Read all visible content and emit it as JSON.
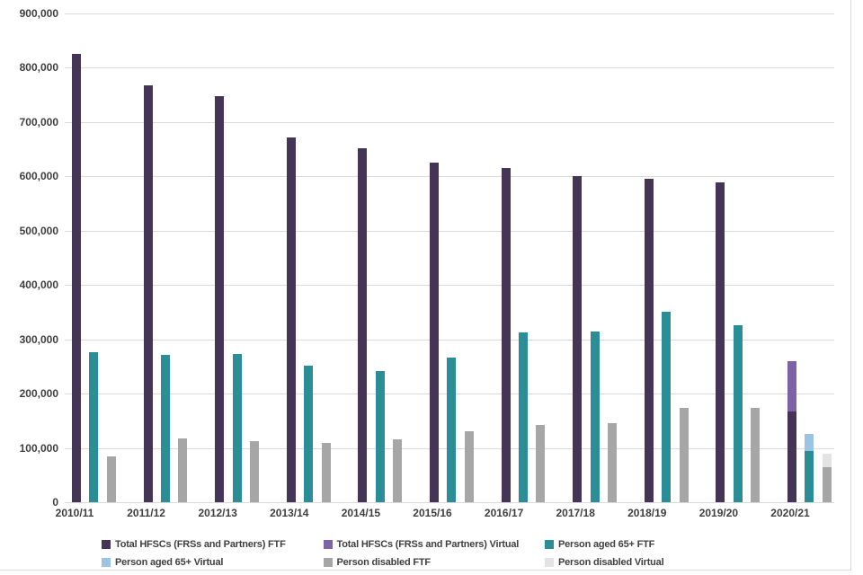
{
  "chart_data": {
    "type": "bar",
    "title": "",
    "categories": [
      "2010/11",
      "2011/12",
      "2012/13",
      "2013/14",
      "2014/15",
      "2015/16",
      "2016/17",
      "2017/18",
      "2018/19",
      "2019/20",
      "2020/21"
    ],
    "series": [
      {
        "name": "Total HFSCs (FRSs and Partners) FTF",
        "color": "#443456",
        "stack": "total",
        "values": [
          825000,
          768000,
          747000,
          672000,
          652000,
          625000,
          615000,
          600000,
          596000,
          589000,
          167000
        ]
      },
      {
        "name": "Total HFSCs (FRSs and Partners) Virtual",
        "color": "#7C62A6",
        "stack": "total",
        "values": [
          0,
          0,
          0,
          0,
          0,
          0,
          0,
          0,
          0,
          0,
          92000
        ]
      },
      {
        "name": "Person aged 65+ FTF",
        "color": "#2B8D96",
        "stack": "aged65",
        "values": [
          277000,
          271000,
          273000,
          252000,
          242000,
          266000,
          312000,
          315000,
          350000,
          326000,
          95000
        ]
      },
      {
        "name": "Person aged 65+ Virtual",
        "color": "#9CC3E5",
        "stack": "aged65",
        "values": [
          0,
          0,
          0,
          0,
          0,
          0,
          0,
          0,
          0,
          0,
          30000
        ]
      },
      {
        "name": "Person disabled FTF",
        "color": "#A6A6A6",
        "stack": "disabled",
        "values": [
          85000,
          118000,
          113000,
          110000,
          115000,
          130000,
          142000,
          146000,
          173000,
          173000,
          65000
        ]
      },
      {
        "name": "Person disabled Virtual",
        "color": "#E3E3E3",
        "stack": "disabled",
        "values": [
          0,
          0,
          0,
          0,
          0,
          0,
          0,
          0,
          0,
          0,
          25000
        ]
      }
    ],
    "y_axis": {
      "min": 0,
      "max": 900000,
      "step": 100000,
      "tick_labels": [
        "0",
        "100,000",
        "200,000",
        "300,000",
        "400,000",
        "500,000",
        "600,000",
        "700,000",
        "800,000",
        "900,000"
      ]
    },
    "grid": true,
    "legend_position": "bottom",
    "legend_rows": [
      [
        0,
        1,
        2
      ],
      [
        3,
        4,
        5
      ]
    ]
  },
  "colors": {
    "grid": "#D9D9D9",
    "text": "#3F3F3F",
    "background": "#FFFFFF"
  }
}
